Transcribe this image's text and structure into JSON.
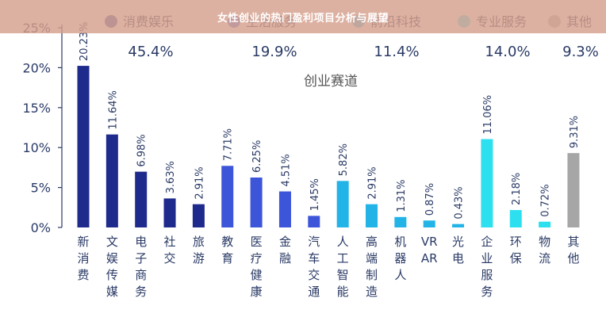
{
  "banner": {
    "title": "女性创业的热门盈利项目分析与展望"
  },
  "chart_data": {
    "type": "bar",
    "title": "女性创业的热门盈利项目分析与展望",
    "center_label": "创业赛道",
    "ylim": [
      0,
      25
    ],
    "yticks": [
      "0%",
      "5%",
      "10%",
      "15%",
      "20%",
      "25%"
    ],
    "legend": [
      {
        "name": "消费娱乐",
        "share": "45.4%",
        "color": "#1e2a8c"
      },
      {
        "name": "生活服务",
        "share": "19.9%",
        "color": "#3d55d8"
      },
      {
        "name": "前沿科技",
        "share": "11.4%",
        "color": "#22b4e6"
      },
      {
        "name": "专业服务",
        "share": "14.0%",
        "color": "#2de0f0"
      },
      {
        "name": "其他",
        "share": "9.3%",
        "color": "#a6a6a6"
      }
    ],
    "bars": [
      {
        "category": "新消费",
        "value": 20.23,
        "label": "20.23%",
        "group": 0
      },
      {
        "category": "文娱传媒",
        "value": 11.64,
        "label": "11.64%",
        "group": 0
      },
      {
        "category": "电子商务",
        "value": 6.98,
        "label": "6.98%",
        "group": 0
      },
      {
        "category": "社交",
        "value": 3.63,
        "label": "3.63%",
        "group": 0
      },
      {
        "category": "旅游",
        "value": 2.91,
        "label": "2.91%",
        "group": 0
      },
      {
        "category": "教育",
        "value": 7.71,
        "label": "7.71%",
        "group": 1
      },
      {
        "category": "医疗健康",
        "value": 6.25,
        "label": "6.25%",
        "group": 1
      },
      {
        "category": "金融",
        "value": 4.51,
        "label": "4.51%",
        "group": 1
      },
      {
        "category": "汽车交通",
        "value": 1.45,
        "label": "1.45%",
        "group": 1
      },
      {
        "category": "人工智能",
        "value": 5.82,
        "label": "5.82%",
        "group": 2
      },
      {
        "category": "高端制造",
        "value": 2.91,
        "label": "2.91%",
        "group": 2
      },
      {
        "category": "机器人",
        "value": 1.31,
        "label": "1.31%",
        "group": 2
      },
      {
        "category": "VR AR",
        "value": 0.87,
        "label": "0.87%",
        "group": 2
      },
      {
        "category": "光电",
        "value": 0.43,
        "label": "0.43%",
        "group": 2
      },
      {
        "category": "企业服务",
        "value": 11.06,
        "label": "11.06%",
        "group": 3
      },
      {
        "category": "环保",
        "value": 2.18,
        "label": "2.18%",
        "group": 3
      },
      {
        "category": "物流",
        "value": 0.72,
        "label": "0.72%",
        "group": 3
      },
      {
        "category": "其他",
        "value": 9.31,
        "label": "9.31%",
        "group": 4
      }
    ]
  }
}
